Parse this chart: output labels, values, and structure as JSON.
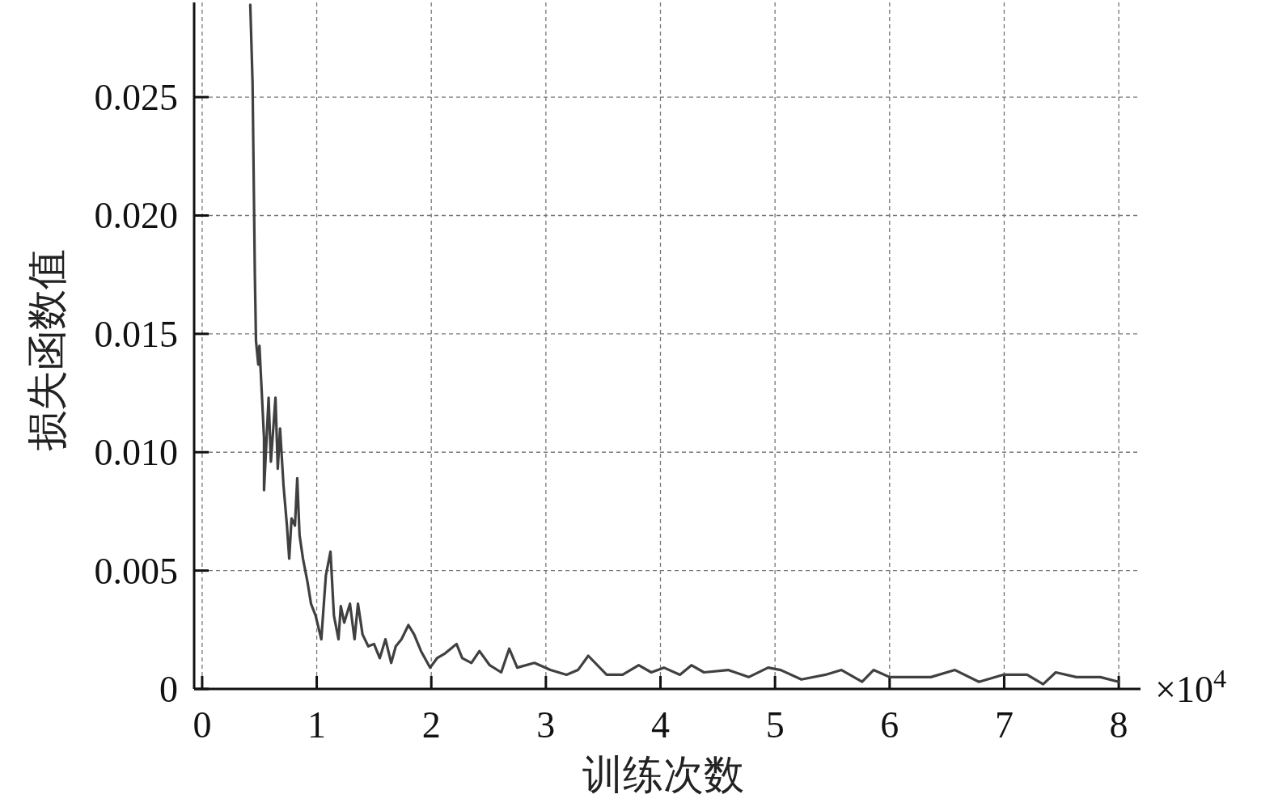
{
  "chart_data": {
    "type": "line",
    "xlabel": "训练次数",
    "ylabel": "损失函数值",
    "annotations": [
      "×10$^{4}$"
    ],
    "xlim": [
      -0.07,
      8.19
    ],
    "ylim": [
      0,
      0.029
    ],
    "xticks": [
      0,
      1,
      2,
      3,
      4,
      5,
      6,
      7,
      8
    ],
    "yticks": [
      0,
      {
        "value": 0.005,
        "label": "0.005"
      },
      {
        "value": 0.01,
        "label": "0.010"
      },
      {
        "value": 0.015,
        "label": "0.015"
      },
      {
        "value": 0.02,
        "label": "0.020"
      },
      {
        "value": 0.025,
        "label": "0.025"
      }
    ],
    "grid": true,
    "marker": "none",
    "line_style": "solid",
    "series": [
      {
        "color": "#404040",
        "x": [
          0.42,
          0.44,
          0.46,
          0.47,
          0.49,
          0.5,
          0.54,
          0.54,
          0.58,
          0.6,
          0.64,
          0.66,
          0.68,
          0.71,
          0.74,
          0.76,
          0.78,
          0.81,
          0.83,
          0.85,
          0.88,
          0.92,
          0.95,
          0.99,
          1.04,
          1.08,
          1.12,
          1.15,
          1.19,
          1.21,
          1.24,
          1.29,
          1.33,
          1.36,
          1.4,
          1.45,
          1.5,
          1.55,
          1.6,
          1.65,
          1.69,
          1.74,
          1.8,
          1.85,
          1.91,
          1.99,
          2.05,
          2.12,
          2.17,
          2.22,
          2.27,
          2.35,
          2.42,
          2.51,
          2.61,
          2.68,
          2.75,
          2.9,
          3.04,
          3.18,
          3.28,
          3.37,
          3.53,
          3.67,
          3.81,
          3.92,
          4.03,
          4.17,
          4.27,
          4.38,
          4.59,
          4.77,
          4.94,
          5.05,
          5.23,
          5.44,
          5.58,
          5.76,
          5.86,
          6.0,
          6.21,
          6.36,
          6.57,
          6.78,
          6.99,
          7.2,
          7.34,
          7.45,
          7.63,
          7.84,
          8.0
        ],
        "values": [
          0.0289,
          0.0256,
          0.0175,
          0.0147,
          0.0137,
          0.0145,
          0.0106,
          0.0084,
          0.0123,
          0.0096,
          0.0123,
          0.0093,
          0.011,
          0.0086,
          0.0069,
          0.0055,
          0.0072,
          0.0069,
          0.0089,
          0.0065,
          0.0055,
          0.0045,
          0.0036,
          0.0031,
          0.0021,
          0.0048,
          0.0058,
          0.0031,
          0.0021,
          0.0035,
          0.0028,
          0.0036,
          0.0021,
          0.0036,
          0.0023,
          0.0018,
          0.0019,
          0.0013,
          0.0021,
          0.0011,
          0.0018,
          0.0021,
          0.0027,
          0.0023,
          0.0016,
          0.0009,
          0.0013,
          0.0015,
          0.0017,
          0.0019,
          0.0013,
          0.0011,
          0.0016,
          0.001,
          0.0007,
          0.0017,
          0.0009,
          0.0011,
          0.0008,
          0.0006,
          0.0008,
          0.0014,
          0.0006,
          0.0006,
          0.001,
          0.0007,
          0.0009,
          0.0006,
          0.001,
          0.0007,
          0.0008,
          0.0005,
          0.0009,
          0.0008,
          0.0004,
          0.0006,
          0.0008,
          0.0003,
          0.0008,
          0.0005,
          0.0005,
          0.0005,
          0.0008,
          0.0003,
          0.0006,
          0.0006,
          0.0002,
          0.0007,
          0.0005,
          0.0005,
          0.0003
        ]
      }
    ]
  }
}
